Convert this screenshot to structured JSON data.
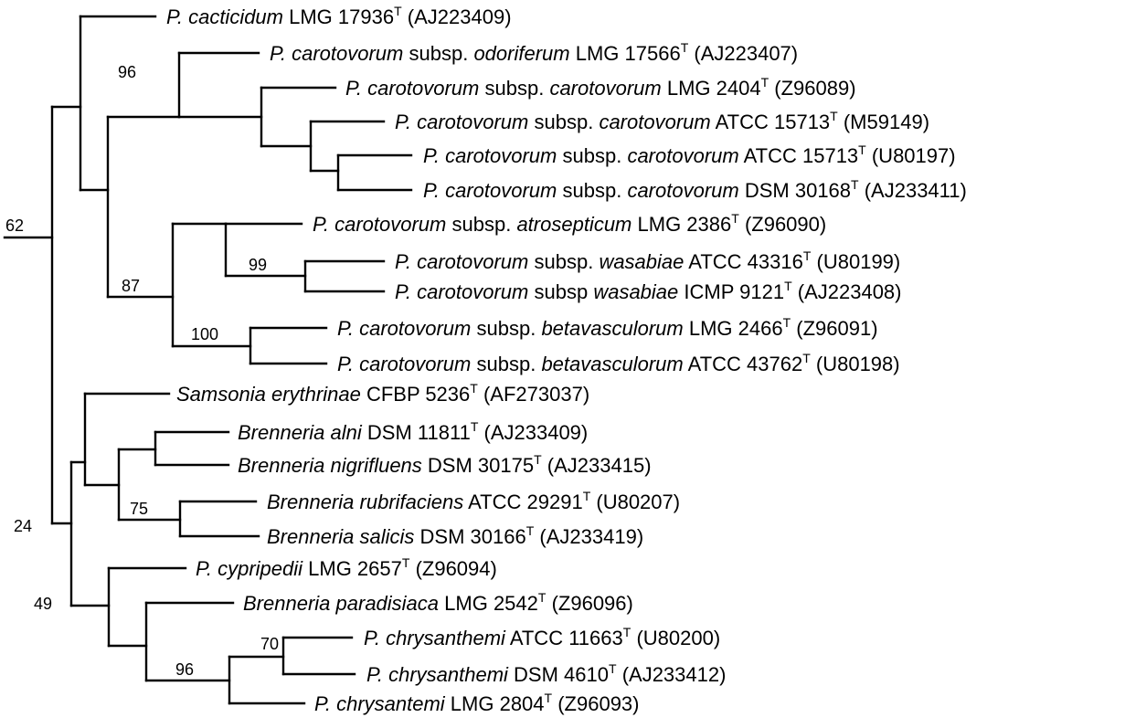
{
  "colors": {
    "line": "#000000",
    "background": "#ffffff"
  },
  "taxa": [
    {
      "id": "t1",
      "genus": "P.",
      "species": "cacticidum",
      "subsp_word": "",
      "subsp": "",
      "strain": "LMG 17936",
      "type_mark": "T",
      "accession": "(AJ223409)"
    },
    {
      "id": "t2",
      "genus": "P.",
      "species": "carotovorum",
      "subsp_word": "subsp.",
      "subsp": "odoriferum",
      "strain": "LMG 17566",
      "type_mark": "T",
      "accession": "(AJ223407)"
    },
    {
      "id": "t3",
      "genus": "P.",
      "species": "carotovorum",
      "subsp_word": "subsp.",
      "subsp": "carotovorum",
      "strain": "LMG 2404",
      "type_mark": "T",
      "accession": "(Z96089)"
    },
    {
      "id": "t4",
      "genus": "P.",
      "species": "carotovorum",
      "subsp_word": "subsp.",
      "subsp": "carotovorum",
      "strain": "ATCC 15713",
      "type_mark": "T",
      "accession": "(M59149)"
    },
    {
      "id": "t5",
      "genus": "P.",
      "species": "carotovorum",
      "subsp_word": "subsp.",
      "subsp": "carotovorum",
      "strain": "ATCC 15713",
      "type_mark": "T",
      "accession": "(U80197)"
    },
    {
      "id": "t6",
      "genus": "P.",
      "species": "carotovorum",
      "subsp_word": "subsp.",
      "subsp": "carotovorum",
      "strain": "DSM 30168",
      "type_mark": "T",
      "accession": "(AJ233411)"
    },
    {
      "id": "t7",
      "genus": "P.",
      "species": "carotovorum",
      "subsp_word": "subsp.",
      "subsp": "atrosepticum",
      "strain": "LMG 2386",
      "type_mark": "T",
      "accession": "(Z96090)"
    },
    {
      "id": "t8",
      "genus": "P.",
      "species": "carotovorum",
      "subsp_word": "subsp.",
      "subsp": "wasabiae",
      "strain": "ATCC 43316",
      "type_mark": "T",
      "accession": "(U80199)"
    },
    {
      "id": "t9",
      "genus": "P.",
      "species": "carotovorum",
      "subsp_word": "subsp",
      "subsp": "wasabiae",
      "strain": "ICMP 9121",
      "type_mark": "T",
      "accession": "(AJ223408)"
    },
    {
      "id": "t10",
      "genus": "P.",
      "species": "carotovorum",
      "subsp_word": "subsp.",
      "subsp": "betavasculorum",
      "strain": "LMG 2466",
      "type_mark": "T",
      "accession": "(Z96091)"
    },
    {
      "id": "t11",
      "genus": "P.",
      "species": "carotovorum",
      "subsp_word": "subsp.",
      "subsp": "betavasculorum",
      "strain": "ATCC 43762",
      "type_mark": "T",
      "accession": "(U80198)"
    },
    {
      "id": "t12",
      "genus": "Samsonia",
      "species": "erythrinae",
      "subsp_word": "",
      "subsp": "",
      "strain": "CFBP 5236",
      "type_mark": "T",
      "accession": "(AF273037)"
    },
    {
      "id": "t13",
      "genus": "Brenneria",
      "species": "alni",
      "subsp_word": "",
      "subsp": "",
      "strain": "DSM 11811",
      "type_mark": "T",
      "accession": "(AJ233409)"
    },
    {
      "id": "t14",
      "genus": "Brenneria",
      "species": "nigrifluens",
      "subsp_word": "",
      "subsp": "",
      "strain": "DSM 30175",
      "type_mark": "T",
      "accession": "(AJ233415)"
    },
    {
      "id": "t15",
      "genus": "Brenneria",
      "species": "rubrifaciens",
      "subsp_word": "",
      "subsp": "",
      "strain": "ATCC 29291",
      "type_mark": "T",
      "accession": "(U80207)"
    },
    {
      "id": "t16",
      "genus": "Brenneria",
      "species": "salicis",
      "subsp_word": "",
      "subsp": "",
      "strain": "DSM 30166",
      "type_mark": "T",
      "accession": "(AJ233419)"
    },
    {
      "id": "t17",
      "genus": "P.",
      "species": "cypripedii",
      "subsp_word": "",
      "subsp": "",
      "strain": "LMG 2657",
      "type_mark": "T",
      "accession": "(Z96094)"
    },
    {
      "id": "t18",
      "genus": "Brenneria",
      "species": "paradisiaca",
      "subsp_word": "",
      "subsp": "",
      "strain": "LMG 2542",
      "type_mark": "T",
      "accession": "(Z96096)"
    },
    {
      "id": "t19",
      "genus": "P.",
      "species": "chrysanthemi",
      "subsp_word": "",
      "subsp": "",
      "strain": "ATCC 11663",
      "type_mark": "T",
      "accession": "(U80200)"
    },
    {
      "id": "t20",
      "genus": "P.",
      "species": "chrysanthemi",
      "subsp_word": "",
      "subsp": "",
      "strain": "DSM 4610",
      "type_mark": "T",
      "accession": "(AJ233412)"
    },
    {
      "id": "t21",
      "genus": "P.",
      "species": "chrysantemi",
      "subsp_word": "",
      "subsp": "",
      "strain": "LMG 2804",
      "type_mark": "T",
      "accession": "(Z96093)"
    }
  ],
  "support_values": [
    {
      "id": "s96a",
      "text": "96"
    },
    {
      "id": "s87",
      "text": "87"
    },
    {
      "id": "s99",
      "text": "99"
    },
    {
      "id": "s100",
      "text": "100"
    },
    {
      "id": "s62",
      "text": "62"
    },
    {
      "id": "s75",
      "text": "75"
    },
    {
      "id": "s24",
      "text": "24"
    },
    {
      "id": "s49",
      "text": "49"
    },
    {
      "id": "s70",
      "text": "70"
    },
    {
      "id": "s96b",
      "text": "96"
    }
  ]
}
